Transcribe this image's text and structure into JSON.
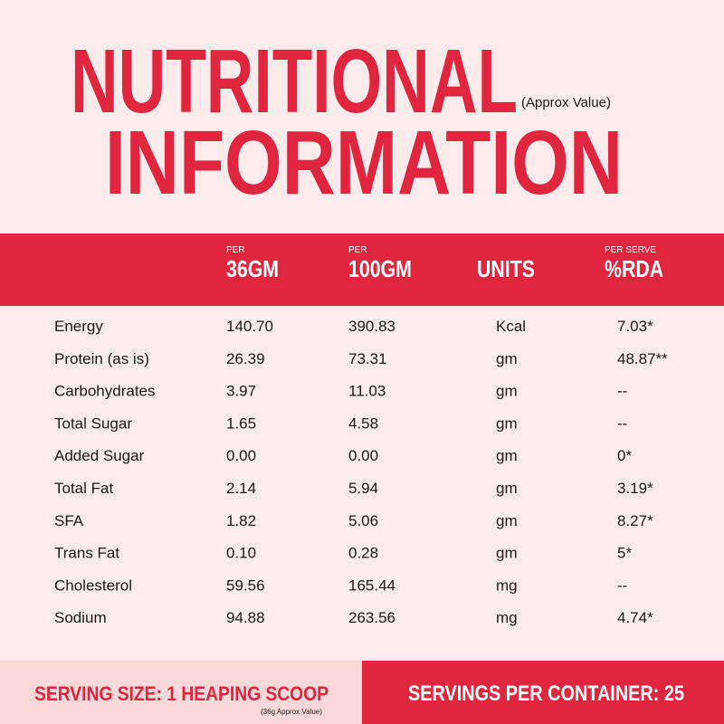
{
  "header": {
    "title_line1": "NUTRITIONAL",
    "title_line2": "INFORMATION",
    "subtitle": "(Approx Value)"
  },
  "table": {
    "columns": [
      {
        "prefix": "PER",
        "label": "36GM"
      },
      {
        "prefix": "PER",
        "label": "100GM"
      },
      {
        "label": "UNITS"
      },
      {
        "prefix": "PER SERVE",
        "label": "%RDA"
      }
    ],
    "rows": [
      [
        "Energy",
        "140.70",
        "390.83",
        "Kcal",
        "7.03*"
      ],
      [
        "Protein (as is)",
        "26.39",
        "73.31",
        "gm",
        "48.87**"
      ],
      [
        "Carbohydrates",
        "3.97",
        "11.03",
        "gm",
        "--"
      ],
      [
        "Total Sugar",
        "1.65",
        "4.58",
        "gm",
        "--"
      ],
      [
        "Added Sugar",
        "0.00",
        "0.00",
        "gm",
        "0*"
      ],
      [
        "Total Fat",
        "2.14",
        "5.94",
        "gm",
        "3.19*"
      ],
      [
        "SFA",
        "1.82",
        "5.06",
        "gm",
        "8.27*"
      ],
      [
        "Trans Fat",
        "0.10",
        "0.28",
        "gm",
        "5*"
      ],
      [
        "Cholesterol",
        "59.56",
        "165.44",
        "mg",
        "--"
      ],
      [
        "Sodium",
        "94.88",
        "263.56",
        "mg",
        "4.74*"
      ]
    ]
  },
  "footer": {
    "serving_size": "SERVING SIZE: 1 HEAPING SCOOP",
    "serving_note": "(36g Approx Value)",
    "servings_per_container": "SERVINGS PER CONTAINER: 25"
  }
}
